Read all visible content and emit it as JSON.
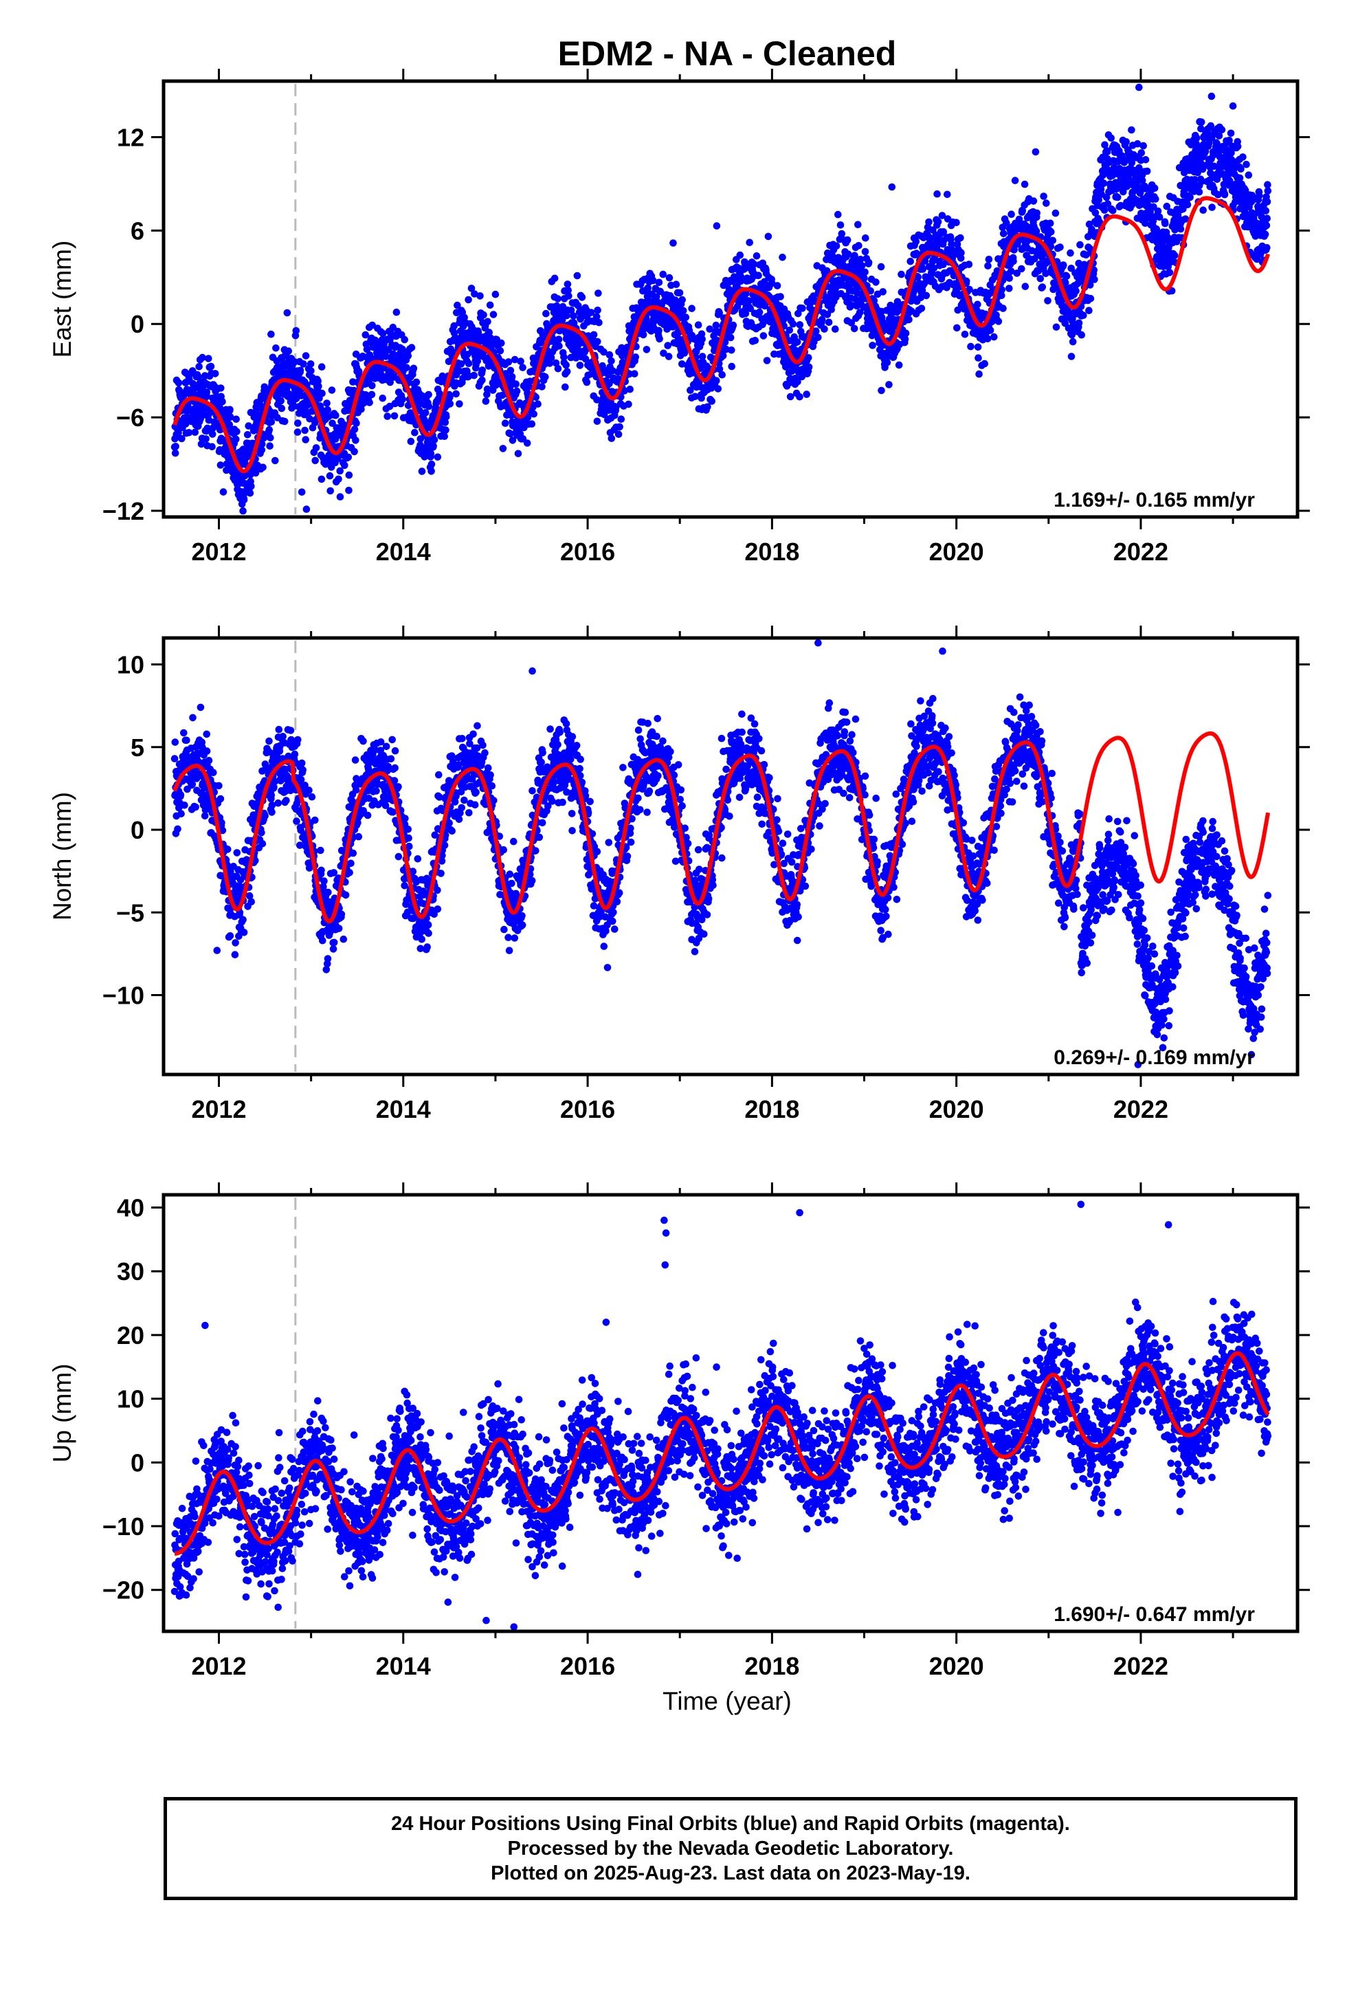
{
  "title": "EDM2  - NA - Cleaned",
  "xlabel": "Time (year)",
  "footer": {
    "line1": "24 Hour Positions Using Final Orbits (blue) and Rapid Orbits (magenta).",
    "line2": "Processed by the Nevada Geodetic Laboratory.",
    "line3": "Plotted on 2025-Aug-23. Last data on 2023-May-19."
  },
  "colors": {
    "data": "#0000ff",
    "model": "#ff0000",
    "event_line": "#bbbbbb"
  },
  "chart_data": [
    {
      "type": "scatter",
      "component": "east",
      "ylabel": "East (mm)",
      "xlim": [
        2011.4,
        2023.7
      ],
      "ylim": [
        -12.4,
        15.6
      ],
      "yticks": [
        -12,
        -6,
        0,
        6,
        12
      ],
      "xticks": [
        2012,
        2014,
        2016,
        2018,
        2020,
        2022
      ],
      "rate_label": "1.169+/- 0.165 mm/yr",
      "event_line_x": 2012.83,
      "data_start": 2011.52,
      "data_end": 2023.38,
      "series": [
        {
          "name": "Final Orbits",
          "description": "daily positions (blue)",
          "trend": {
            "ref_year": 2011.5,
            "offset_mm": -7.2,
            "rate_mm_per_yr": 1.169
          },
          "seasonal": {
            "annual_cos": -0.2,
            "annual_sin": 2.6,
            "semiannual_cos": 0.5,
            "semiannual_sin": 0.3
          },
          "scatter_sd_mm": 1.3,
          "offsets": [
            {
              "from": 2021.5,
              "mm": 2.8
            }
          ]
        },
        {
          "name": "Model",
          "description": "fitted trajectory (red)",
          "trend": {
            "ref_year": 2011.5,
            "offset_mm": -7.2,
            "rate_mm_per_yr": 1.169
          },
          "seasonal": {
            "annual_cos": -0.2,
            "annual_sin": 2.6,
            "semiannual_cos": 0.5,
            "semiannual_sin": 0.3
          },
          "model_end": 2023.38
        }
      ],
      "outliers": [
        [
          2012.9,
          -10.8
        ],
        [
          2012.95,
          -11.9
        ],
        [
          2023.0,
          14.0
        ],
        [
          2021.98,
          15.2
        ],
        [
          2015.0,
          1.9
        ],
        [
          2017.4,
          6.3
        ],
        [
          2019.3,
          8.8
        ]
      ]
    },
    {
      "type": "scatter",
      "component": "north",
      "ylabel": "North (mm)",
      "xlim": [
        2011.4,
        2023.7
      ],
      "ylim": [
        -14.8,
        11.6
      ],
      "yticks": [
        -10,
        -5,
        0,
        5,
        10
      ],
      "xticks": [
        2012,
        2014,
        2016,
        2018,
        2020,
        2022
      ],
      "rate_label": "0.269+/- 0.169 mm/yr",
      "event_line_x": 2012.83,
      "data_start": 2011.52,
      "data_end": 2023.38,
      "series": [
        {
          "name": "Final Orbits",
          "description": "daily positions (blue)",
          "trend": {
            "ref_year": 2011.5,
            "offset_mm": 0.2,
            "rate_mm_per_yr": 0.269
          },
          "seasonal": {
            "annual_cos": 1.2,
            "annual_sin": 4.2,
            "semiannual_cos": 0.6,
            "semiannual_sin": -0.6
          },
          "scatter_sd_mm": 1.2,
          "offsets": [
            {
              "from": 2012.8,
              "mm": -1.0
            },
            {
              "from": 2021.35,
              "mm": -7.5
            }
          ]
        },
        {
          "name": "Model",
          "description": "fitted trajectory (red)",
          "trend": {
            "ref_year": 2011.5,
            "offset_mm": 0.2,
            "rate_mm_per_yr": 0.269
          },
          "seasonal": {
            "annual_cos": 1.2,
            "annual_sin": 4.2,
            "semiannual_cos": 0.6,
            "semiannual_sin": -0.6
          },
          "offsets": [
            {
              "from": 2012.8,
              "mm": -1.0
            }
          ],
          "model_end": 2023.38
        }
      ],
      "outliers": [
        [
          2018.5,
          11.3
        ],
        [
          2019.85,
          10.8
        ],
        [
          2015.4,
          9.6
        ],
        [
          2011.98,
          -7.3
        ],
        [
          2021.97,
          -14.2
        ],
        [
          2023.2,
          -13.6
        ]
      ]
    },
    {
      "type": "scatter",
      "component": "up",
      "ylabel": "Up (mm)",
      "xlim": [
        2011.4,
        2023.7
      ],
      "ylim": [
        -26.5,
        42.0
      ],
      "yticks": [
        -20,
        -10,
        0,
        10,
        20,
        30,
        40
      ],
      "xticks": [
        2012,
        2014,
        2016,
        2018,
        2020,
        2022
      ],
      "rate_label": "1.690+/- 0.647 mm/yr",
      "event_line_x": 2012.83,
      "data_start": 2011.52,
      "data_end": 2023.38,
      "series": [
        {
          "name": "Final Orbits",
          "description": "daily positions (blue)",
          "trend": {
            "ref_year": 2011.5,
            "offset_mm": -9.0,
            "rate_mm_per_yr": 1.69
          },
          "seasonal": {
            "annual_cos": -5.8,
            "annual_sin": -1.5,
            "semiannual_cos": 0.5,
            "semiannual_sin": 0.4
          },
          "scatter_sd_mm": 4.2,
          "offsets": []
        },
        {
          "name": "Model",
          "description": "fitted trajectory (red)",
          "trend": {
            "ref_year": 2011.5,
            "offset_mm": -9.0,
            "rate_mm_per_yr": 1.69
          },
          "seasonal": {
            "annual_cos": -5.8,
            "annual_sin": -1.5,
            "semiannual_cos": 0.5,
            "semiannual_sin": 0.4
          },
          "model_end": 2023.38
        }
      ],
      "outliers": [
        [
          2016.83,
          38.0
        ],
        [
          2016.85,
          36.0
        ],
        [
          2018.3,
          39.2
        ],
        [
          2021.35,
          40.5
        ],
        [
          2022.3,
          37.3
        ],
        [
          2016.84,
          31.0
        ],
        [
          2015.2,
          -25.8
        ],
        [
          2014.9,
          -24.8
        ],
        [
          2011.85,
          21.5
        ],
        [
          2016.2,
          22.0
        ]
      ]
    }
  ]
}
